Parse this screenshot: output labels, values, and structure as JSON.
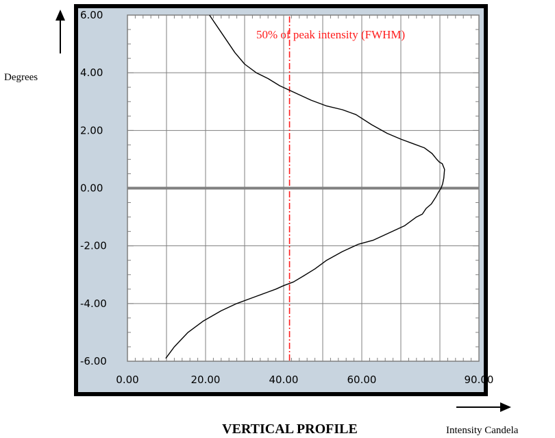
{
  "chart_data": {
    "type": "line",
    "title": "VERTICAL PROFILE",
    "xlabel": "Intensity Candela",
    "ylabel": "Degrees",
    "xlim": [
      0,
      90
    ],
    "ylim": [
      -6,
      6
    ],
    "x_tick_labels": [
      "0.00",
      "20.00",
      "40.00",
      "60.00",
      "90.00"
    ],
    "x_tick_values": [
      0,
      20,
      40,
      60,
      90
    ],
    "y_tick_labels": [
      "6.00",
      "4.00",
      "2.00",
      "0.00",
      "-2.00",
      "-4.00",
      "-6.00"
    ],
    "y_tick_values": [
      6,
      4,
      2,
      0,
      -2,
      -4,
      -6
    ],
    "grid": true,
    "series": [
      {
        "x": [
          9.8,
          12.0,
          15.5,
          19.5,
          24.0,
          28.0,
          32.0,
          36.0,
          38.0,
          40.0,
          42.5,
          45.0,
          48.0,
          51.0,
          55.0,
          59.0,
          63.0,
          67.0,
          71.0,
          74.0,
          75.5,
          76.5,
          77.8,
          79.0,
          79.6,
          80.3,
          80.7,
          81.0,
          81.2,
          80.6,
          79.9,
          79.2,
          78.0,
          76.0,
          73.0,
          70.0,
          66.5,
          62.5,
          58.5,
          55.0,
          51.0,
          47.0,
          43.0,
          39.0,
          36.0,
          33.0,
          30.0,
          27.5,
          24.0,
          21.0
        ],
        "y": [
          -5.9,
          -5.5,
          -5.0,
          -4.6,
          -4.25,
          -4.0,
          -3.8,
          -3.6,
          -3.5,
          -3.38,
          -3.25,
          -3.05,
          -2.8,
          -2.5,
          -2.2,
          -1.95,
          -1.8,
          -1.55,
          -1.3,
          -1.0,
          -0.9,
          -0.7,
          -0.55,
          -0.3,
          -0.15,
          0.0,
          0.15,
          0.35,
          0.65,
          0.85,
          0.9,
          1.0,
          1.2,
          1.4,
          1.55,
          1.7,
          1.9,
          2.2,
          2.55,
          2.72,
          2.85,
          3.05,
          3.3,
          3.55,
          3.8,
          4.0,
          4.3,
          4.7,
          5.4,
          6.0
        ]
      }
    ],
    "reference_lines": [
      {
        "axis": "x",
        "value": 41.5,
        "label": "50% of peak intensity (FWHM)",
        "color": "#ff1a1a",
        "style": "dash-dot"
      },
      {
        "axis": "y",
        "value": 0,
        "color": "#808080",
        "style": "thick"
      }
    ]
  },
  "colors": {
    "plot_bg": "#ffffff",
    "frame_bg": "#c8d4df",
    "outer_border": "#000000",
    "grid": "#7f7f7f",
    "curve": "#000000",
    "annotation": "#ff1a1a"
  }
}
